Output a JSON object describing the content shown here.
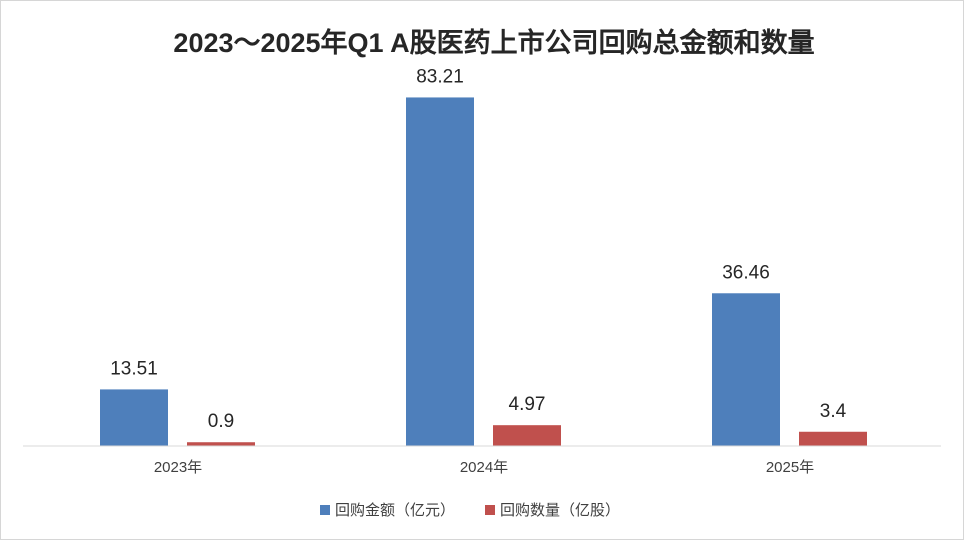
{
  "chart_data": {
    "type": "bar",
    "title": "2023～2025年Q1 A股医药上市公司回购总金额和数量",
    "categories": [
      "2023年",
      "2024年",
      "2025年"
    ],
    "series": [
      {
        "name": "回购金额（亿元）",
        "values": [
          13.51,
          83.21,
          36.46
        ],
        "color": "#4e7fbb"
      },
      {
        "name": "回购数量（亿股）",
        "values": [
          0.9,
          4.97,
          3.4
        ],
        "color": "#c0504d"
      }
    ],
    "value_labels": [
      [
        "13.51",
        "83.21",
        "36.46"
      ],
      [
        "0.9",
        "4.97",
        "3.4"
      ]
    ],
    "ylim": [
      0,
      90
    ],
    "grid": false,
    "legend_position": "bottom"
  }
}
